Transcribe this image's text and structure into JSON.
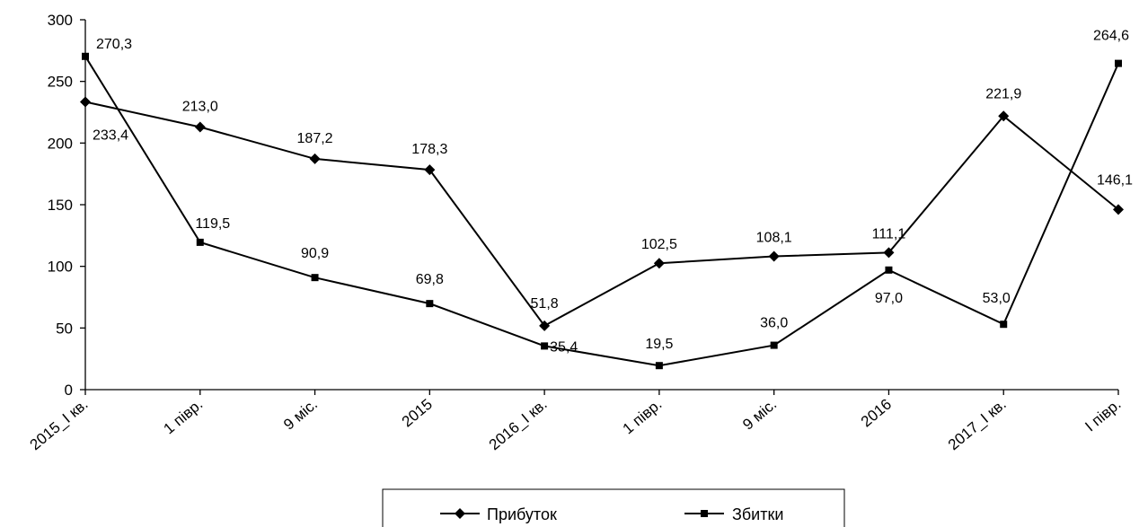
{
  "chart_data": {
    "type": "line",
    "categories": [
      "2015_I кв.",
      "1 півр.",
      "9 міс.",
      "2015",
      "2016_I кв.",
      "1 півр.",
      "9 міс.",
      "2016",
      "2017_I кв.",
      "I півр."
    ],
    "ylim": [
      0,
      300
    ],
    "yticks": [
      0,
      50,
      100,
      150,
      200,
      250,
      300
    ],
    "grid": false,
    "legend_position": "bottom",
    "series": [
      {
        "name": "Прибуток",
        "marker": "diamond",
        "values": [
          233.4,
          213.0,
          187.2,
          178.3,
          51.8,
          102.5,
          108.1,
          111.1,
          221.9,
          146.1
        ],
        "labels": [
          "233,4",
          "213,0",
          "187,2",
          "178,3",
          "51,8",
          "102,5",
          "108,1",
          "111,1",
          "221,9",
          "146,1"
        ]
      },
      {
        "name": "Збитки",
        "marker": "square",
        "values": [
          270.3,
          119.5,
          90.9,
          69.8,
          35.4,
          19.5,
          36.0,
          97.0,
          53.0,
          264.6
        ],
        "labels": [
          "270,3",
          "119,5",
          "90,9",
          "69,8",
          "35,4",
          "19,5",
          "36,0",
          "97,0",
          "53,0",
          "264,6"
        ]
      }
    ],
    "colors": {
      "line": "#000000",
      "background": "#ffffff"
    }
  }
}
